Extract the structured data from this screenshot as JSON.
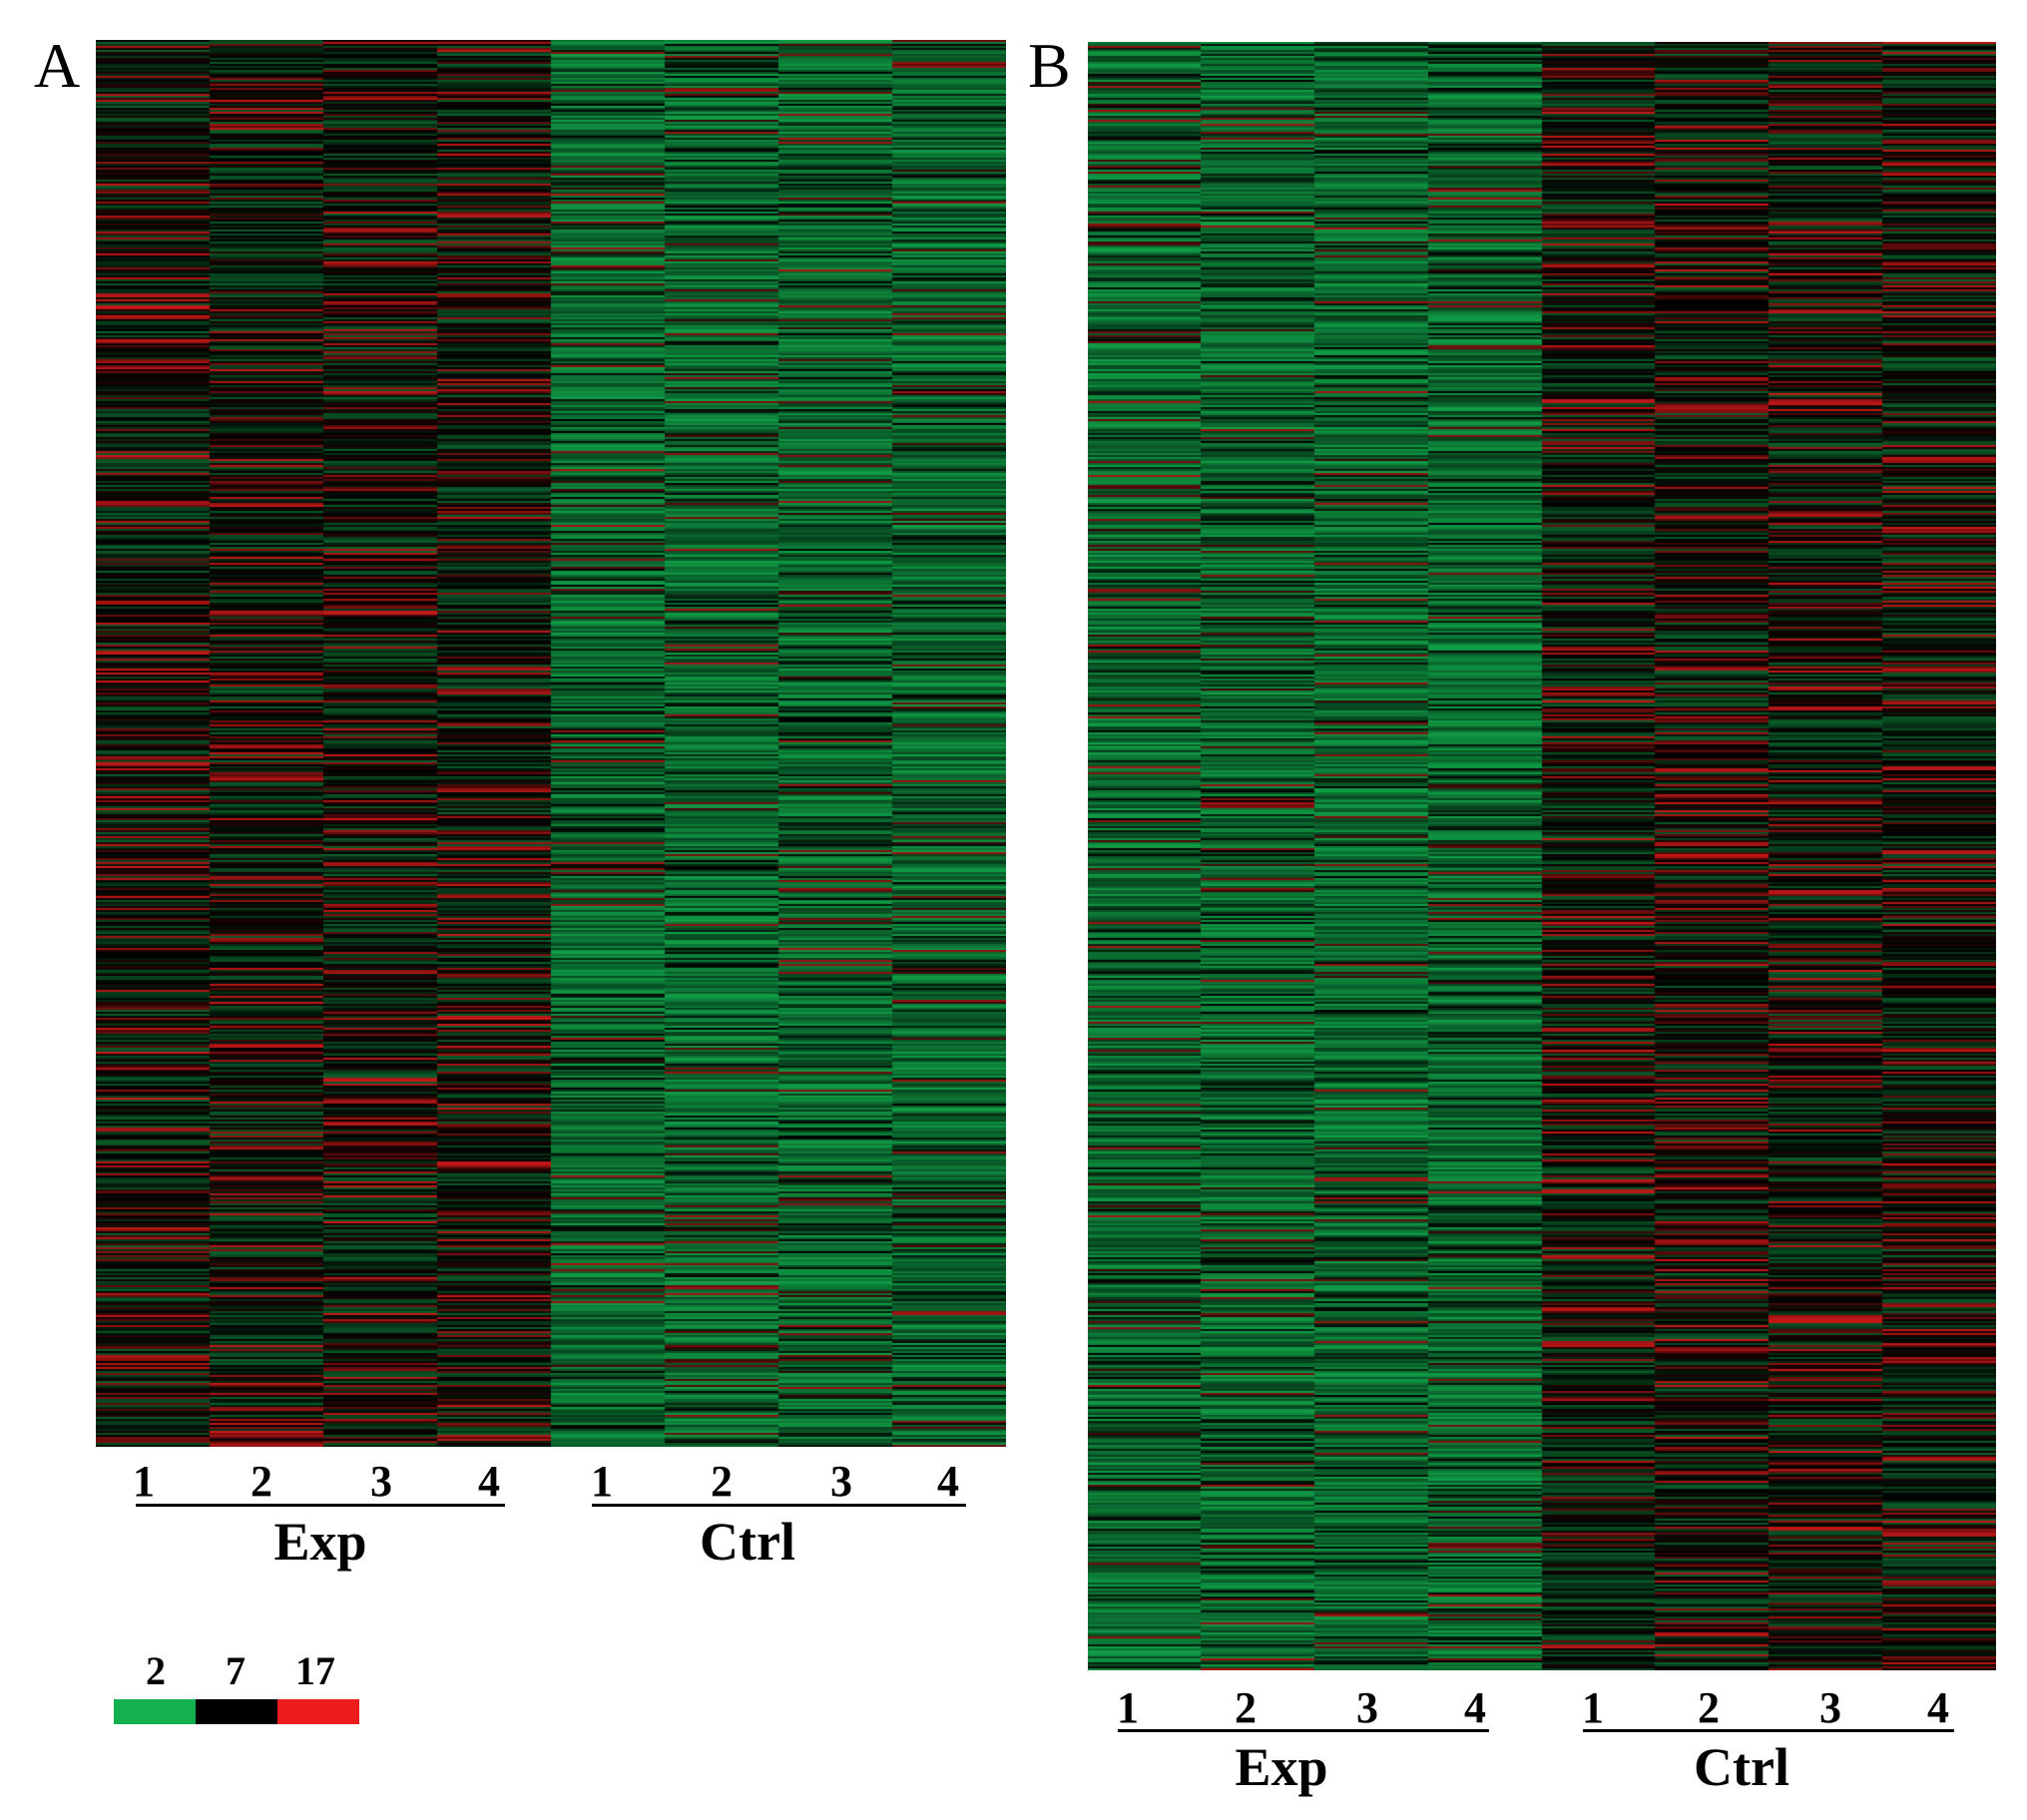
{
  "chart_data": [
    {
      "type": "heatmap",
      "panel": "A",
      "groups": [
        {
          "name": "Exp",
          "columns": [
            "1",
            "2",
            "3",
            "4"
          ]
        },
        {
          "name": "Ctrl",
          "columns": [
            "1",
            "2",
            "3",
            "4"
          ]
        }
      ],
      "group_expression_bias": {
        "Exp": "mixed black/red/dark green",
        "Ctrl": "predominantly green"
      }
    },
    {
      "type": "heatmap",
      "panel": "B",
      "groups": [
        {
          "name": "Exp",
          "columns": [
            "1",
            "2",
            "3",
            "4"
          ]
        },
        {
          "name": "Ctrl",
          "columns": [
            "1",
            "2",
            "3",
            "4"
          ]
        }
      ],
      "group_expression_bias": {
        "Exp": "predominantly green",
        "Ctrl": "mixed black/red/dark green"
      }
    }
  ],
  "legend": {
    "ticks": [
      "2",
      "7",
      "17"
    ],
    "colors": [
      "#12b04f",
      "#000000",
      "#ee1c1c"
    ]
  },
  "colors": {
    "low": "#12b04f",
    "mid": "#000000",
    "high": "#ee1c1c"
  }
}
